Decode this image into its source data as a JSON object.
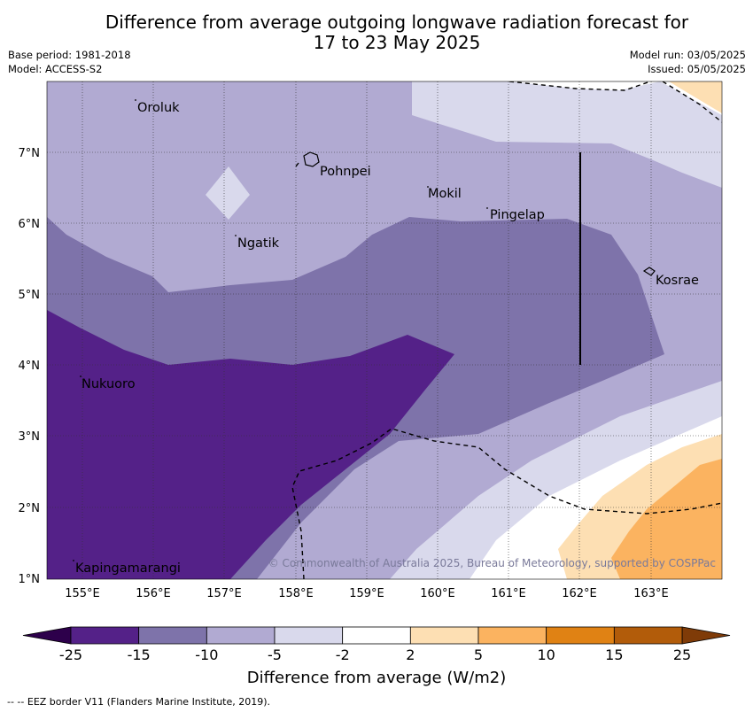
{
  "title_line1": "Difference from average outgoing longwave radiation forecast for",
  "title_line2": "17 to 23 May 2025",
  "base_period": "Base period: 1981-2018",
  "model": "Model: ACCESS-S2",
  "model_run": "Model run: 03/05/2025",
  "issued": "Issued: 05/05/2025",
  "credit": "© Commonwealth of Australia 2025, Bureau of Meteorology, supported by COSPPac",
  "places": [
    "Oroluk",
    "Pohnpei",
    "Mokil",
    "Pingelap",
    "Ngatik",
    "Kosrae",
    "Nukuoro",
    "Kapingamarangi"
  ],
  "lat_ticks": [
    "7°N",
    "6°N",
    "5°N",
    "4°N",
    "3°N",
    "2°N",
    "1°N"
  ],
  "lon_ticks": [
    "155°E",
    "156°E",
    "157°E",
    "158°E",
    "159°E",
    "160°E",
    "161°E",
    "162°E",
    "163°E"
  ],
  "colorbar": {
    "ticks": [
      "-25",
      "-15",
      "-10",
      "-5",
      "-2",
      "2",
      "5",
      "10",
      "15",
      "25"
    ],
    "colors": [
      "#542188",
      "#7e73aa",
      "#b1aad2",
      "#d9d9ec",
      "#ffffff",
      "#fddfb3",
      "#fbb360",
      "#e08214",
      "#b25c0a"
    ],
    "under_color": "#2d004b",
    "over_color": "#7f3b08",
    "title": "Difference from average (W/m2)"
  },
  "legend_note": "-- -- EEZ border V11 (Flanders Marine Institute, 2019)."
}
